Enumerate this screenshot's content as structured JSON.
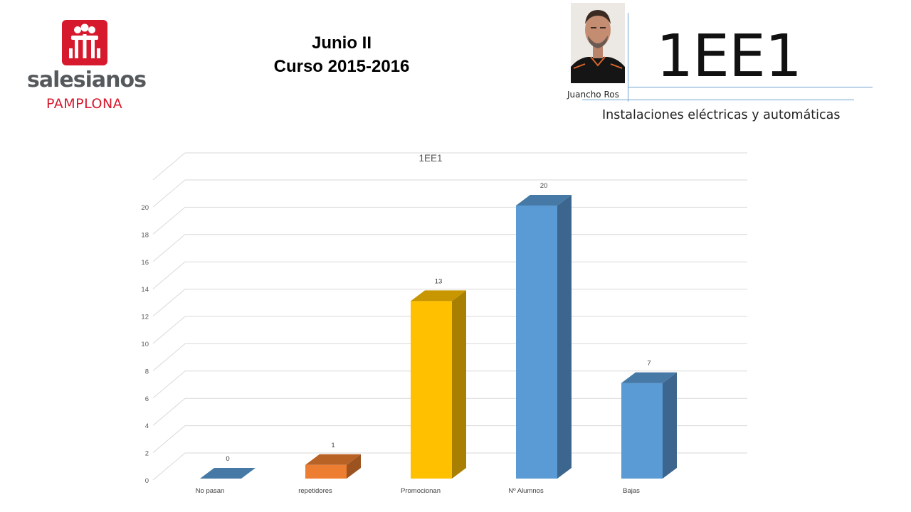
{
  "logo": {
    "name": "salesianos",
    "city": "PAMPLONA"
  },
  "heading": {
    "line1": "Junio II",
    "line2": "Curso 2015-2016"
  },
  "photo": {
    "caption": "Juancho Ros"
  },
  "course": {
    "code": "1EE1",
    "description": "Instalaciones eléctricas y automáticas"
  },
  "colors": {
    "brand": "#d7192d",
    "rule": "#6fa2d0"
  },
  "chart_data": {
    "type": "bar",
    "title": "1EE1",
    "categories": [
      "No pasan",
      "repetidores",
      "Promocionan",
      "Nº Alumnos",
      "Bajas"
    ],
    "values": [
      0,
      1,
      13,
      20,
      7
    ],
    "colors": [
      "#5b9bd5",
      "#ed7d31",
      "#ffc000",
      "#5b9bd5",
      "#5b9bd5"
    ],
    "ylim": [
      0,
      20
    ],
    "yticks": [
      0,
      2,
      4,
      6,
      8,
      10,
      12,
      14,
      16,
      18,
      20
    ],
    "grid": true,
    "style": "3d",
    "data_labels": true,
    "legend": "none"
  }
}
